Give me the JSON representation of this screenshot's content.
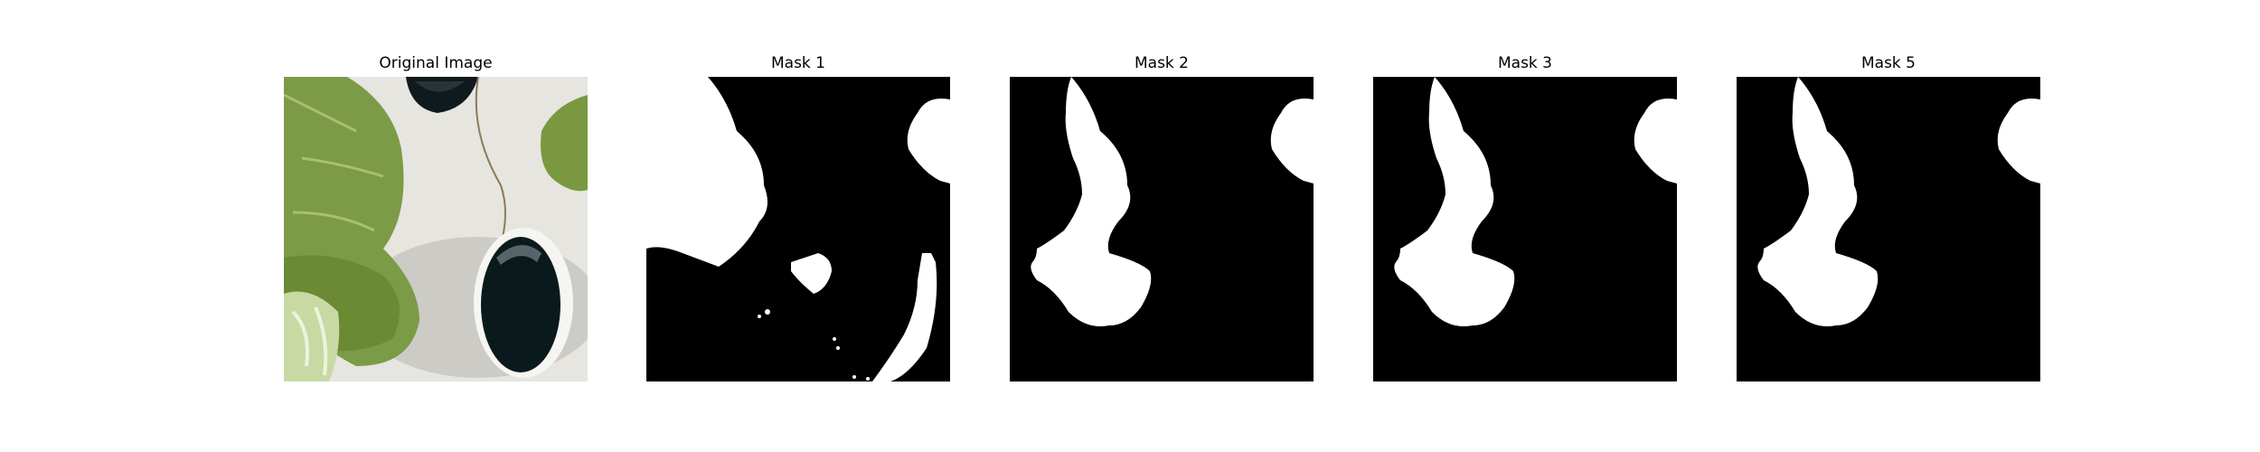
{
  "figure": {
    "panels": [
      {
        "title": "Original Image"
      },
      {
        "title": "Mask 1"
      },
      {
        "title": "Mask 2"
      },
      {
        "title": "Mask 3"
      },
      {
        "title": "Mask 5"
      }
    ]
  },
  "colors": {
    "background": "#ffffff",
    "mask_foreground": "#ffffff",
    "mask_background": "#000000",
    "leaf_green": "#7a9a45",
    "pot_white": "#e4e2dc",
    "hole_dark": "#0a1a1c"
  }
}
